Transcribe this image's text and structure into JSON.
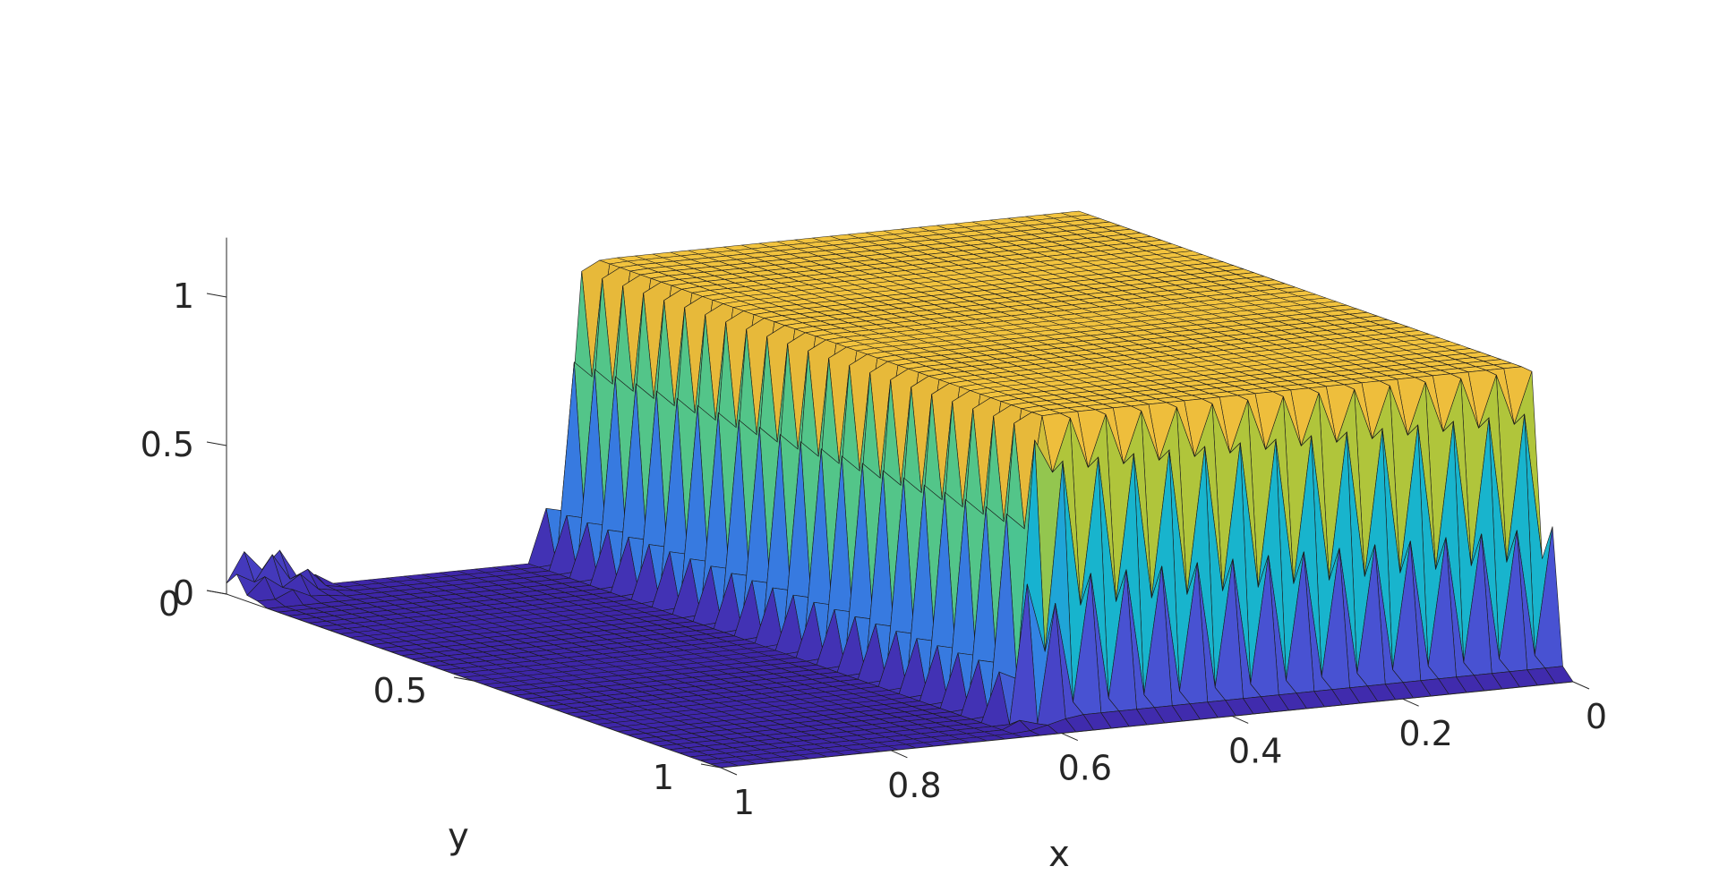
{
  "chart_data": {
    "type": "surface",
    "title": "",
    "xlabel": "x",
    "ylabel": "y",
    "zlabel": "",
    "xlim": [
      0,
      1
    ],
    "ylim": [
      0,
      1
    ],
    "zlim": [
      0,
      1.2
    ],
    "x_ticks": [
      "0",
      "0.2",
      "0.4",
      "0.6",
      "0.8",
      "1"
    ],
    "y_ticks": [
      "0",
      "0.5",
      "1"
    ],
    "z_ticks": [
      "0",
      "0.5",
      "1"
    ],
    "x_tick_values": [
      0,
      0.2,
      0.4,
      0.6,
      0.8,
      1
    ],
    "y_tick_values": [
      0,
      0.5,
      1
    ],
    "z_tick_values": [
      0,
      0.5,
      1
    ],
    "grid": false,
    "colormap": "parula",
    "colors": [
      "#3e26a8",
      "#4a4dd0",
      "#2f8ce6",
      "#16b4cf",
      "#4ec58e",
      "#a9c63b",
      "#e9b93a",
      "#f7c840",
      "#f9fb15"
    ],
    "description_of_surface": {
      "plateau_value": 1.0,
      "plateau_region": {
        "x": [
          0,
          0.6
        ],
        "y": [
          0,
          0.95
        ]
      },
      "background_value": 0.0,
      "peak_value": 1.18,
      "peak_location": {
        "x": 0.96,
        "y": 0.0
      }
    }
  }
}
